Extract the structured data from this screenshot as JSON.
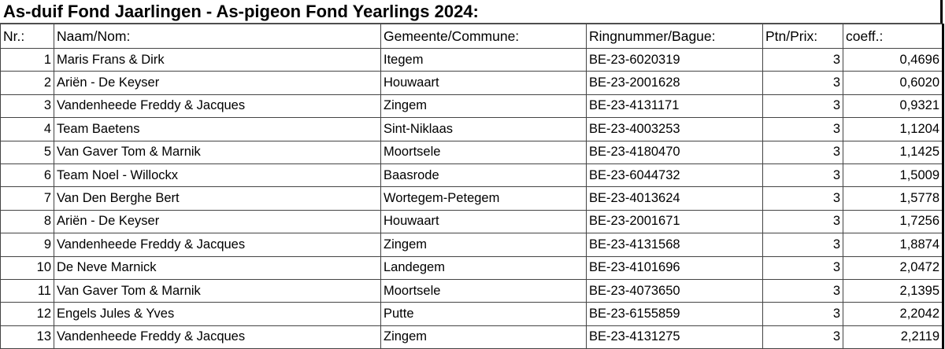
{
  "title": "As-duif Fond Jaarlingen - As-pigeon Fond Yearlings 2024:",
  "headers": {
    "nr": "Nr.:",
    "name": "Naam/Nom:",
    "commune": "Gemeente/Commune:",
    "ring": "Ringnummer/Bague:",
    "prize": "Ptn/Prix:",
    "coeff": "coeff.:"
  },
  "rows": [
    {
      "nr": "1",
      "name": "Maris Frans & Dirk",
      "commune": "Itegem",
      "ring": "BE-23-6020319",
      "prize": "3",
      "coeff": "0,4696"
    },
    {
      "nr": "2",
      "name": "Ariën - De Keyser",
      "commune": "Houwaart",
      "ring": "BE-23-2001628",
      "prize": "3",
      "coeff": "0,6020"
    },
    {
      "nr": "3",
      "name": "Vandenheede Freddy & Jacques",
      "commune": "Zingem",
      "ring": "BE-23-4131171",
      "prize": "3",
      "coeff": "0,9321"
    },
    {
      "nr": "4",
      "name": "Team Baetens",
      "commune": "Sint-Niklaas",
      "ring": "BE-23-4003253",
      "prize": "3",
      "coeff": "1,1204"
    },
    {
      "nr": "5",
      "name": "Van Gaver Tom & Marnik",
      "commune": "Moortsele",
      "ring": "BE-23-4180470",
      "prize": "3",
      "coeff": "1,1425"
    },
    {
      "nr": "6",
      "name": "Team Noel - Willockx",
      "commune": "Baasrode",
      "ring": "BE-23-6044732",
      "prize": "3",
      "coeff": "1,5009"
    },
    {
      "nr": "7",
      "name": "Van Den Berghe Bert",
      "commune": "Wortegem-Petegem",
      "ring": "BE-23-4013624",
      "prize": "3",
      "coeff": "1,5778"
    },
    {
      "nr": "8",
      "name": "Ariën - De Keyser",
      "commune": "Houwaart",
      "ring": "BE-23-2001671",
      "prize": "3",
      "coeff": "1,7256"
    },
    {
      "nr": "9",
      "name": "Vandenheede Freddy & Jacques",
      "commune": "Zingem",
      "ring": "BE-23-4131568",
      "prize": "3",
      "coeff": "1,8874"
    },
    {
      "nr": "10",
      "name": "De Neve Marnick",
      "commune": "Landegem",
      "ring": "BE-23-4101696",
      "prize": "3",
      "coeff": "2,0472"
    },
    {
      "nr": "11",
      "name": "Van Gaver Tom & Marnik",
      "commune": "Moortsele",
      "ring": "BE-23-4073650",
      "prize": "3",
      "coeff": "2,1395"
    },
    {
      "nr": "12",
      "name": "Engels Jules & Yves",
      "commune": "Putte",
      "ring": "BE-23-6155859",
      "prize": "3",
      "coeff": "2,2042"
    },
    {
      "nr": "13",
      "name": "Vandenheede Freddy & Jacques",
      "commune": "Zingem",
      "ring": "BE-23-4131275",
      "prize": "3",
      "coeff": "2,2119"
    }
  ]
}
